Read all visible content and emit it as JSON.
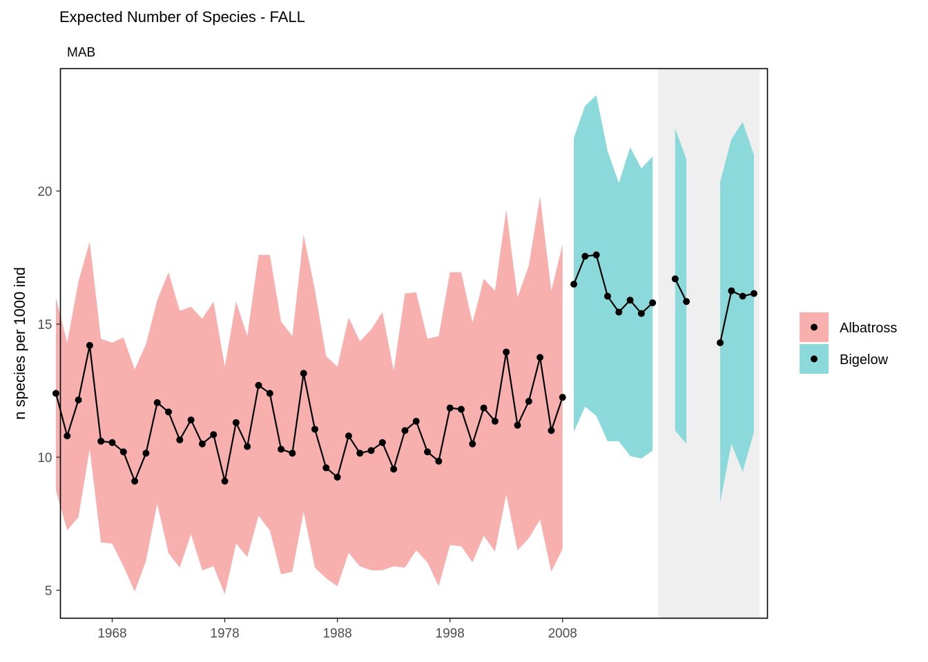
{
  "chart_data": {
    "type": "line",
    "title": "Expected Number of Species - FALL",
    "subtitle": "MAB",
    "xlabel": "",
    "ylabel": "n species per 1000 ind",
    "xlim": [
      1963.4,
      2026.2
    ],
    "ylim": [
      3.95,
      24.6
    ],
    "xticks": [
      1968,
      1978,
      1988,
      1998,
      2008
    ],
    "yticks": [
      5,
      10,
      15,
      20
    ],
    "grid": false,
    "legend_position": "right",
    "shaded_region": {
      "x_start": 2016.5,
      "x_end": 2025.5,
      "color": "#efefef"
    },
    "series": [
      {
        "name": "Albatross",
        "fill": "#f8b0ae",
        "x": [
          1963,
          1964,
          1965,
          1966,
          1967,
          1968,
          1969,
          1970,
          1971,
          1972,
          1973,
          1974,
          1975,
          1976,
          1977,
          1978,
          1979,
          1980,
          1981,
          1982,
          1983,
          1984,
          1985,
          1986,
          1987,
          1988,
          1989,
          1990,
          1991,
          1992,
          1993,
          1994,
          1995,
          1996,
          1997,
          1998,
          1999,
          2000,
          2001,
          2002,
          2003,
          2004,
          2005,
          2006,
          2007,
          2008
        ],
        "values": [
          12.4,
          10.8,
          12.15,
          14.2,
          10.6,
          10.55,
          10.2,
          9.1,
          10.15,
          12.05,
          11.7,
          10.65,
          11.4,
          10.5,
          10.85,
          9.1,
          11.3,
          10.4,
          12.7,
          12.4,
          10.3,
          10.15,
          13.15,
          11.05,
          9.6,
          9.25,
          10.8,
          10.15,
          10.25,
          10.55,
          9.55,
          11.0,
          11.35,
          10.2,
          9.85,
          11.85,
          11.8,
          10.5,
          11.85,
          11.35,
          13.95,
          11.2,
          12.1,
          13.75,
          11.0,
          12.25
        ],
        "upper": [
          16.0,
          14.3,
          16.6,
          18.1,
          14.45,
          14.3,
          14.5,
          13.3,
          14.25,
          15.9,
          16.95,
          15.5,
          15.65,
          15.2,
          15.85,
          13.4,
          15.85,
          14.55,
          17.6,
          17.6,
          15.1,
          14.55,
          18.35,
          16.3,
          13.8,
          13.4,
          15.25,
          14.35,
          14.8,
          15.45,
          13.25,
          16.15,
          16.2,
          14.45,
          14.55,
          16.95,
          16.95,
          15.05,
          16.7,
          16.25,
          19.3,
          16.0,
          17.2,
          19.8,
          16.25,
          18.0
        ],
        "lower": [
          8.75,
          7.25,
          7.75,
          10.3,
          6.8,
          6.75,
          5.9,
          4.95,
          6.1,
          8.25,
          6.4,
          5.85,
          7.1,
          5.75,
          5.9,
          4.85,
          6.75,
          6.25,
          7.8,
          7.25,
          5.6,
          5.7,
          7.95,
          5.85,
          5.45,
          5.15,
          6.4,
          5.9,
          5.75,
          5.75,
          5.9,
          5.85,
          6.5,
          6.05,
          5.15,
          6.7,
          6.65,
          6.05,
          7.05,
          6.45,
          8.6,
          6.5,
          6.95,
          7.65,
          5.7,
          6.55
        ]
      },
      {
        "name": "Bigelow",
        "fill": "#8bd9da",
        "segments": [
          {
            "x": [
              2009,
              2010,
              2011,
              2012,
              2013,
              2014,
              2015,
              2016
            ],
            "values": [
              16.5,
              17.55,
              17.6,
              16.05,
              15.45,
              15.9,
              15.4,
              15.8
            ],
            "upper": [
              22.0,
              23.2,
              23.6,
              21.5,
              20.3,
              21.65,
              20.85,
              21.3
            ],
            "lower": [
              10.95,
              11.9,
              11.55,
              10.6,
              10.6,
              10.05,
              9.95,
              10.25
            ]
          },
          {
            "x": [
              2018,
              2019
            ],
            "values": [
              16.7,
              15.85
            ],
            "upper": [
              22.35,
              21.2
            ],
            "lower": [
              11.0,
              10.5
            ]
          },
          {
            "x": [
              2022,
              2023,
              2024,
              2025
            ],
            "values": [
              14.3,
              16.25,
              16.05,
              16.15
            ],
            "upper": [
              20.35,
              21.95,
              22.6,
              21.35
            ],
            "lower": [
              8.3,
              10.5,
              9.45,
              10.95
            ]
          }
        ]
      }
    ]
  }
}
